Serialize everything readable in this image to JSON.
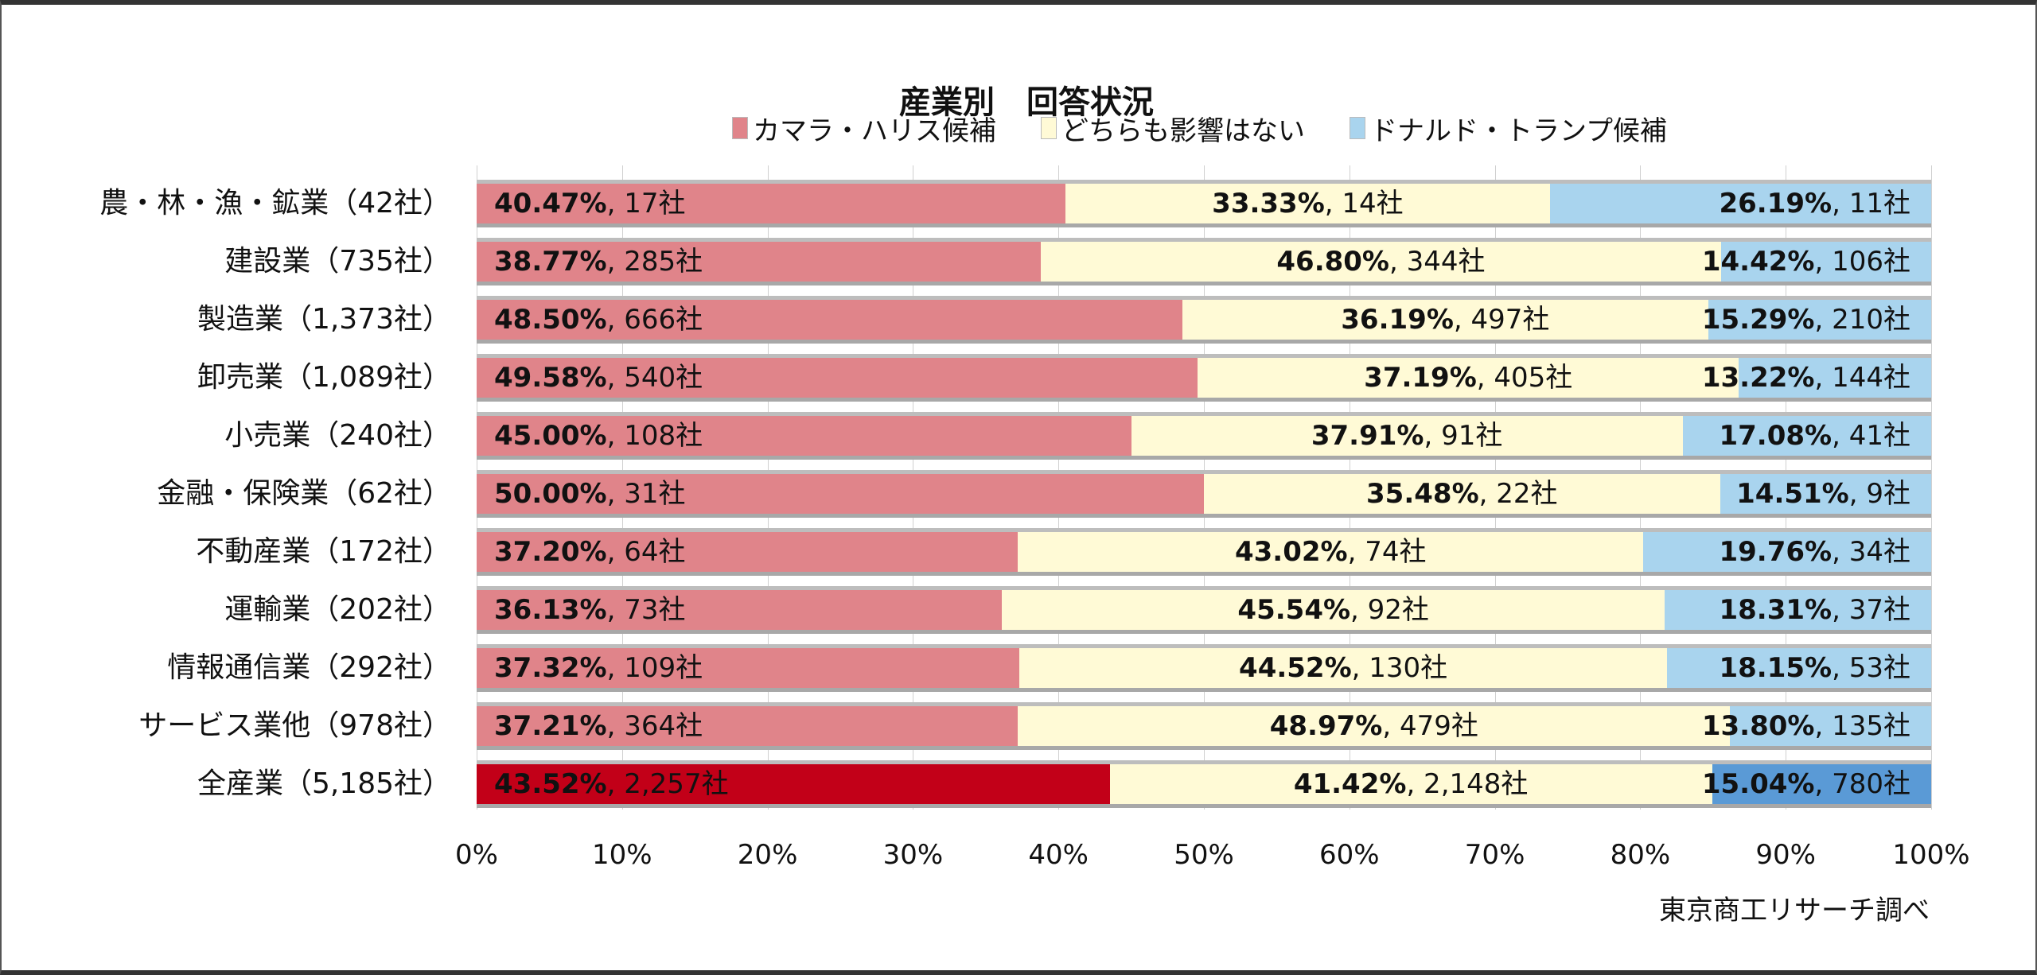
{
  "chart_data": {
    "type": "bar",
    "orientation": "horizontal-stacked-100",
    "title": "産業別　回答状況",
    "legend": [
      "カマラ・ハリス候補",
      "どちらも影響はない",
      "ドナルド・トランプ候補"
    ],
    "legend_placement": "top",
    "categories": [
      "農・林・漁・鉱業（42社）",
      "建設業（735社）",
      "製造業（1,373社）",
      "卸売業（1,089社）",
      "小売業（240社）",
      "金融・保険業（62社）",
      "不動産業（172社）",
      "運輸業（202社）",
      "情報通信業（292社）",
      "サービス業他（978社）",
      "全産業（5,185社）"
    ],
    "series": [
      {
        "name": "カマラ・ハリス候補",
        "values": [
          40.47,
          38.77,
          48.5,
          49.58,
          45.0,
          50.0,
          37.2,
          36.13,
          37.32,
          37.21,
          43.52
        ],
        "pct_labels": [
          "40.47%",
          "38.77%",
          "48.50%",
          "49.58%",
          "45.00%",
          "50.00%",
          "37.20%",
          "36.13%",
          "37.32%",
          "37.21%",
          "43.52%"
        ],
        "count_labels": [
          ", 17社",
          ", 285社",
          ", 666社",
          ", 540社",
          ", 108社",
          ", 31社",
          ", 64社",
          ", 73社",
          ", 109社",
          ", 364社",
          ", 2,257社"
        ]
      },
      {
        "name": "どちらも影響はない",
        "values": [
          33.33,
          46.8,
          36.19,
          37.19,
          37.91,
          35.48,
          43.02,
          45.54,
          44.52,
          48.97,
          41.42
        ],
        "pct_labels": [
          "33.33%",
          "46.80%",
          "36.19%",
          "37.19%",
          "37.91%",
          "35.48%",
          "43.02%",
          "45.54%",
          "44.52%",
          "48.97%",
          "41.42%"
        ],
        "count_labels": [
          ", 14社",
          ", 344社",
          ", 497社",
          ", 405社",
          ", 91社",
          ", 22社",
          ", 74社",
          ", 92社",
          ", 130社",
          ", 479社",
          ", 2,148社"
        ]
      },
      {
        "name": "ドナルド・トランプ候補",
        "values": [
          26.19,
          14.42,
          15.29,
          13.22,
          17.08,
          14.51,
          19.76,
          18.31,
          18.15,
          13.8,
          15.04
        ],
        "pct_labels": [
          "26.19%",
          "14.42%",
          "15.29%",
          "13.22%",
          "17.08%",
          "14.51%",
          "19.76%",
          "18.31%",
          "18.15%",
          "13.80%",
          "15.04%"
        ],
        "count_labels": [
          ", 11社",
          ", 106社",
          ", 210社",
          ", 144社",
          ", 41社",
          ", 9社",
          ", 34社",
          ", 37社",
          ", 53社",
          ", 135社",
          ", 780社"
        ]
      }
    ],
    "colors": {
      "harris": "#e0848a",
      "neutral": "#fffad6",
      "trump": "#a9d4ee",
      "harris_total": "#c20018",
      "trump_total": "#5a9ad6"
    },
    "xlim": [
      0,
      100
    ],
    "x_ticks": [
      "0%",
      "10%",
      "20%",
      "30%",
      "40%",
      "50%",
      "60%",
      "70%",
      "80%",
      "90%",
      "100%"
    ],
    "grid": true,
    "source": "東京商工リサーチ調べ"
  }
}
